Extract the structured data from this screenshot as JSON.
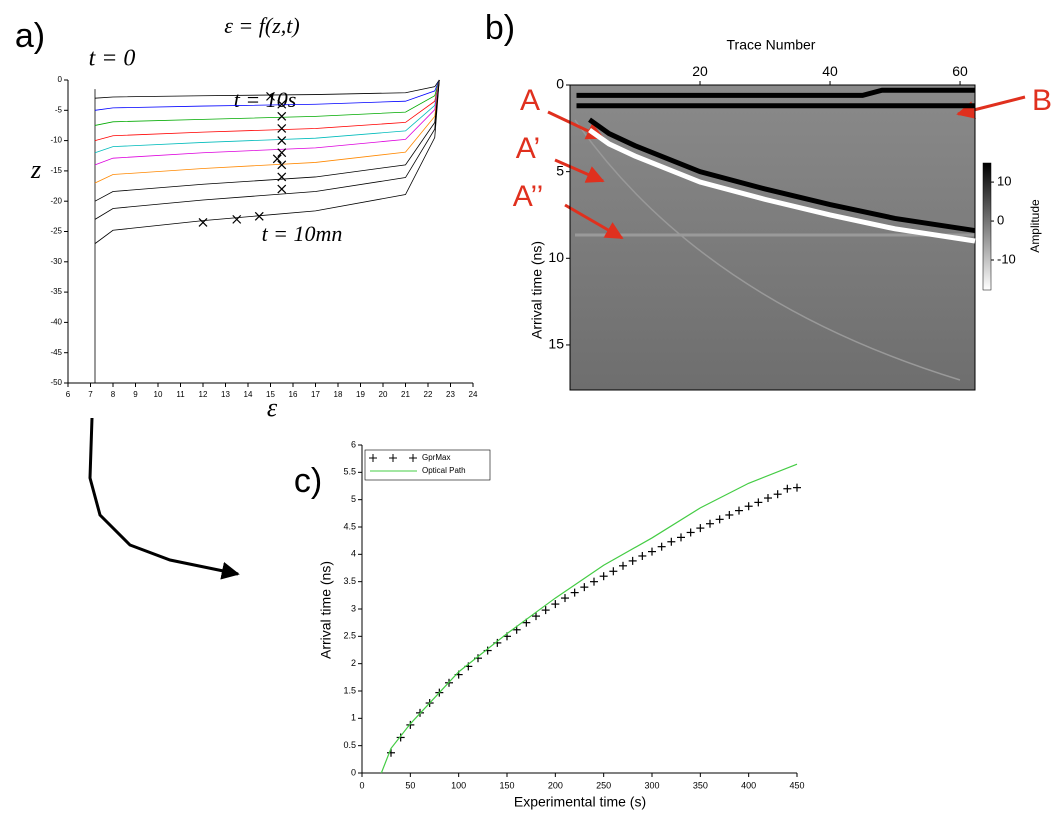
{
  "chart_data": [
    {
      "type": "line",
      "panel_label": "a)",
      "annotations": [
        "ε = f(z,t)",
        "t = 0",
        "t = 10s",
        "t = 10mn"
      ],
      "xlabel": "ε",
      "ylabel": "z",
      "xlim": [
        6,
        24
      ],
      "xticks": [
        6,
        7,
        8,
        9,
        10,
        11,
        12,
        13,
        14,
        15,
        16,
        17,
        18,
        19,
        20,
        21,
        22,
        23,
        24
      ],
      "ylim": [
        -50,
        0
      ],
      "yticks": [
        0,
        -5,
        -10,
        -15,
        -20,
        -25,
        -30,
        -35,
        -40,
        -45,
        -50
      ],
      "series": [
        {
          "color": "#000000",
          "x": [
            7.2,
            7.2
          ],
          "values": [
            -1.5,
            -50
          ]
        },
        {
          "color": "#000000",
          "x": [
            7.2,
            8,
            12,
            17,
            21,
            22.3,
            22.5
          ],
          "values": [
            -3,
            -2.8,
            -2.6,
            -2.4,
            -2.1,
            -1.1,
            0
          ]
        },
        {
          "color": "#0000ff",
          "x": [
            7.2,
            8,
            12,
            17,
            21,
            22.3,
            22.5
          ],
          "values": [
            -5,
            -4.6,
            -4.3,
            -4,
            -3.5,
            -1.8,
            0
          ]
        },
        {
          "color": "#00aa00",
          "x": [
            7.2,
            8,
            12,
            17,
            21,
            22.3,
            22.5
          ],
          "values": [
            -7.5,
            -6.9,
            -6.5,
            -6,
            -5.3,
            -2.6,
            0
          ]
        },
        {
          "color": "#ff0000",
          "x": [
            7.2,
            8,
            12,
            17,
            21,
            22.3,
            22.5
          ],
          "values": [
            -10,
            -9.2,
            -8.6,
            -8,
            -7,
            -3.5,
            0
          ]
        },
        {
          "color": "#00bbbb",
          "x": [
            7.2,
            8,
            12,
            17,
            21,
            22.3,
            22.5
          ],
          "values": [
            -12,
            -11,
            -10.3,
            -9.6,
            -8.4,
            -4.2,
            0
          ]
        },
        {
          "color": "#dd00dd",
          "x": [
            7.2,
            8,
            12,
            17,
            21,
            22.3,
            22.5
          ],
          "values": [
            -14,
            -12.9,
            -12,
            -11.2,
            -9.8,
            -4.9,
            0
          ]
        },
        {
          "color": "#ff8800",
          "x": [
            7.2,
            8,
            12,
            17,
            21,
            22.3,
            22.5
          ],
          "values": [
            -17,
            -15.6,
            -14.6,
            -13.6,
            -11.9,
            -6,
            0
          ]
        },
        {
          "color": "#000000",
          "x": [
            7.2,
            8,
            12,
            17,
            21,
            22.3,
            22.5
          ],
          "values": [
            -20,
            -18.4,
            -17.2,
            -16,
            -14,
            -7,
            0
          ]
        },
        {
          "color": "#000000",
          "x": [
            7.2,
            8,
            12,
            17,
            21,
            22.3,
            22.5
          ],
          "values": [
            -23,
            -21.2,
            -19.8,
            -18.4,
            -16.1,
            -8.1,
            0
          ]
        },
        {
          "color": "#000000",
          "x": [
            7.2,
            8,
            12,
            17,
            21,
            22.3,
            22.5
          ],
          "values": [
            -27,
            -24.8,
            -23.2,
            -21.6,
            -18.9,
            -9.5,
            0
          ]
        },
        {
          "color": "#000000",
          "marker": "x",
          "x": [
            15,
            15.5,
            15.5,
            15.5,
            15.5,
            15.5,
            15.5,
            15.3,
            15.5,
            15.5,
            12,
            13.5,
            14.5
          ],
          "values": [
            -2.7,
            -4,
            -6,
            -8,
            -10,
            -12,
            -14,
            -13,
            -16,
            -18,
            -23.5,
            -23,
            -22.5
          ]
        }
      ]
    },
    {
      "type": "heatmap",
      "panel_label": "b)",
      "annotations": [
        "A",
        "A’",
        "A’’",
        "B"
      ],
      "xlabel": "Trace Number",
      "ylabel": "Arrival time (ns)",
      "x_axis_position": "top",
      "y_inverted": true,
      "xlim": [
        0,
        62.3
      ],
      "xticks": [
        20,
        40,
        60
      ],
      "ylim": [
        0,
        17.6
      ],
      "yticks": [
        0,
        5,
        10,
        15
      ],
      "colorbar": {
        "label": "Amplitude",
        "lim": [
          -17.7,
          14.9
        ],
        "ticks": [
          10,
          0,
          -10
        ]
      },
      "series": [
        {
          "color": "#000000",
          "x": [
            1,
            45,
            48,
            62.3
          ],
          "values": [
            0.6,
            0.6,
            0.3,
            0.3
          ]
        },
        {
          "color": "#000000",
          "x": [
            1,
            62.3
          ],
          "values": [
            1.2,
            1.2
          ]
        },
        {
          "color": "#000000",
          "x": [
            3,
            6,
            10,
            20,
            30,
            40,
            50,
            62.3
          ],
          "values": [
            2,
            2.8,
            3.5,
            5,
            6,
            6.9,
            7.7,
            8.4
          ]
        },
        {
          "color": "#ffffff",
          "x": [
            3,
            6,
            10,
            20,
            30,
            40,
            50,
            62.3
          ],
          "values": [
            2.6,
            3.4,
            4.1,
            5.6,
            6.6,
            7.5,
            8.3,
            9
          ]
        }
      ]
    },
    {
      "type": "scatter-line",
      "panel_label": "c)",
      "xlabel": "Experimental time (s)",
      "ylabel": "Arrival time (ns)",
      "xlim": [
        0,
        450
      ],
      "xticks": [
        0,
        50,
        100,
        150,
        200,
        250,
        300,
        350,
        400,
        450
      ],
      "ylim": [
        0,
        6
      ],
      "yticks": [
        0,
        0.5,
        1,
        1.5,
        2,
        2.5,
        3,
        3.5,
        4,
        4.5,
        5,
        5.5,
        6
      ],
      "legend": "upper left",
      "series": [
        {
          "name": "GprMax",
          "marker": "+",
          "color": "#000000",
          "x": [
            30,
            40,
            50,
            60,
            70,
            80,
            90,
            100,
            110,
            120,
            130,
            140,
            150,
            160,
            170,
            180,
            190,
            200,
            210,
            220,
            230,
            240,
            250,
            260,
            270,
            280,
            290,
            300,
            310,
            320,
            330,
            340,
            350,
            360,
            370,
            380,
            390,
            400,
            410,
            420,
            430,
            440,
            450
          ],
          "values": [
            0.37,
            0.65,
            0.88,
            1.1,
            1.28,
            1.47,
            1.65,
            1.8,
            1.95,
            2.1,
            2.24,
            2.38,
            2.5,
            2.62,
            2.75,
            2.87,
            2.98,
            3.09,
            3.2,
            3.3,
            3.4,
            3.5,
            3.6,
            3.69,
            3.79,
            3.88,
            3.97,
            4.05,
            4.14,
            4.23,
            4.31,
            4.4,
            4.48,
            4.56,
            4.64,
            4.72,
            4.8,
            4.88,
            4.95,
            5.03,
            5.1,
            5.2,
            5.22
          ]
        },
        {
          "name": "Optical Path",
          "color": "#44cc44",
          "x": [
            20,
            30,
            50,
            100,
            150,
            200,
            250,
            300,
            350,
            400,
            450
          ],
          "values": [
            0,
            0.45,
            0.9,
            1.85,
            2.55,
            3.2,
            3.8,
            4.3,
            4.85,
            5.3,
            5.65
          ]
        }
      ]
    }
  ]
}
